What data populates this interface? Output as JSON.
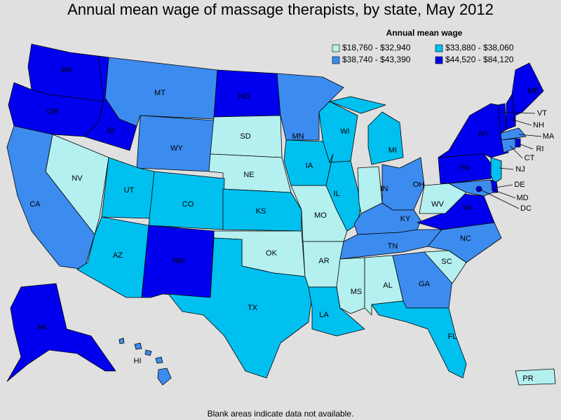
{
  "title": "Annual mean wage of massage therapists, by state, May 2012",
  "legend": {
    "title": "Annual mean wage",
    "items": [
      {
        "label": "$18,760 - $32,940",
        "color": "#b4f0f0"
      },
      {
        "label": "$33,880 - $38,060",
        "color": "#00c0f0"
      },
      {
        "label": "$38,740 - $43,390",
        "color": "#3c8cf0"
      },
      {
        "label": "$44,520 - $84,120",
        "color": "#0000ee"
      }
    ]
  },
  "states": [
    {
      "label": "WA",
      "color": "#0000ee"
    },
    {
      "label": "OR",
      "color": "#0000ee"
    },
    {
      "label": "ID",
      "color": "#0000ee"
    },
    {
      "label": "MT",
      "color": "#3c8cf0"
    },
    {
      "label": "WY",
      "color": "#3c8cf0"
    },
    {
      "label": "ND",
      "color": "#0000ee"
    },
    {
      "label": "SD",
      "color": "#b4f0f0"
    },
    {
      "label": "NE",
      "color": "#b4f0f0"
    },
    {
      "label": "NV",
      "color": "#b4f0f0"
    },
    {
      "label": "CA",
      "color": "#3c8cf0"
    },
    {
      "label": "UT",
      "color": "#00c0f0"
    },
    {
      "label": "CO",
      "color": "#00c0f0"
    },
    {
      "label": "AZ",
      "color": "#00c0f0"
    },
    {
      "label": "NM",
      "color": "#0000ee"
    },
    {
      "label": "KS",
      "color": "#00c0f0"
    },
    {
      "label": "OK",
      "color": "#b4f0f0"
    },
    {
      "label": "TX",
      "color": "#00c0f0"
    },
    {
      "label": "MN",
      "color": "#3c8cf0"
    },
    {
      "label": "IA",
      "color": "#00c0f0"
    },
    {
      "label": "MO",
      "color": "#b4f0f0"
    },
    {
      "label": "AR",
      "color": "#b4f0f0"
    },
    {
      "label": "LA",
      "color": "#00c0f0"
    },
    {
      "label": "WI",
      "color": "#00c0f0"
    },
    {
      "label": "IL",
      "color": "#00c0f0"
    },
    {
      "label": "MI",
      "color": "#00c0f0"
    },
    {
      "label": "IN",
      "color": "#b4f0f0"
    },
    {
      "label": "OH",
      "color": "#3c8cf0"
    },
    {
      "label": "KY",
      "color": "#3c8cf0"
    },
    {
      "label": "TN",
      "color": "#3c8cf0"
    },
    {
      "label": "MS",
      "color": "#b4f0f0"
    },
    {
      "label": "AL",
      "color": "#b4f0f0"
    },
    {
      "label": "GA",
      "color": "#3c8cf0"
    },
    {
      "label": "FL",
      "color": "#00c0f0"
    },
    {
      "label": "SC",
      "color": "#b4f0f0"
    },
    {
      "label": "NC",
      "color": "#3c8cf0"
    },
    {
      "label": "VA",
      "color": "#0000ee"
    },
    {
      "label": "WV",
      "color": "#b4f0f0"
    },
    {
      "label": "PA",
      "color": "#0000ee"
    },
    {
      "label": "NY",
      "color": "#0000ee"
    },
    {
      "label": "NJ",
      "color": "#00c0f0"
    },
    {
      "label": "DE",
      "color": "#0000ee"
    },
    {
      "label": "MD",
      "color": "#3c8cf0"
    },
    {
      "label": "DC",
      "color": "#0000ee"
    },
    {
      "label": "VT",
      "color": "#0000ee"
    },
    {
      "label": "NH",
      "color": "#0000ee"
    },
    {
      "label": "MA",
      "color": "#0000ee"
    },
    {
      "label": "RI",
      "color": "#3c8cf0"
    },
    {
      "label": "CT",
      "color": "#0000ee"
    },
    {
      "label": "ME",
      "color": "#3c8cf0"
    },
    {
      "label": "AK",
      "color": "#0000ee"
    },
    {
      "label": "HI",
      "color": "#3c8cf0"
    },
    {
      "label": "PR",
      "color": "#b4f0f0"
    }
  ],
  "footnote": "Blank areas indicate data not available."
}
